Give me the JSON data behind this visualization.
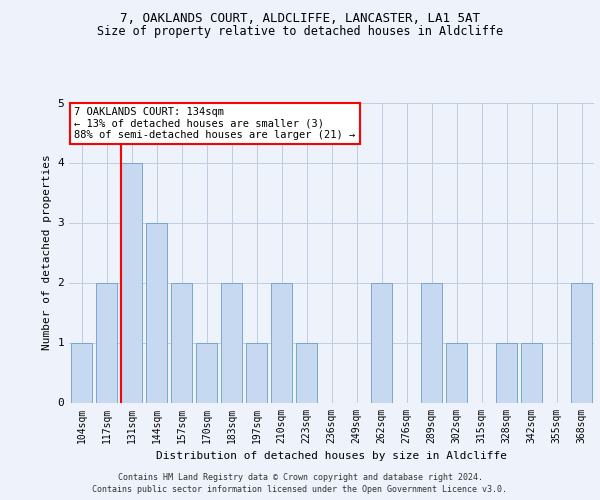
{
  "title1": "7, OAKLANDS COURT, ALDCLIFFE, LANCASTER, LA1 5AT",
  "title2": "Size of property relative to detached houses in Aldcliffe",
  "xlabel": "Distribution of detached houses by size in Aldcliffe",
  "ylabel": "Number of detached properties",
  "categories": [
    "104sqm",
    "117sqm",
    "131sqm",
    "144sqm",
    "157sqm",
    "170sqm",
    "183sqm",
    "197sqm",
    "210sqm",
    "223sqm",
    "236sqm",
    "249sqm",
    "262sqm",
    "276sqm",
    "289sqm",
    "302sqm",
    "315sqm",
    "328sqm",
    "342sqm",
    "355sqm",
    "368sqm"
  ],
  "values": [
    1,
    2,
    4,
    3,
    2,
    1,
    2,
    1,
    2,
    1,
    0,
    0,
    2,
    0,
    2,
    1,
    0,
    1,
    1,
    0,
    2
  ],
  "bar_color": "#c6d9f0",
  "bar_edge_color": "#6a9ec7",
  "highlight_bar_index": 2,
  "annotation_text": "7 OAKLANDS COURT: 134sqm\n← 13% of detached houses are smaller (3)\n88% of semi-detached houses are larger (21) →",
  "annotation_box_color": "white",
  "annotation_box_edge_color": "red",
  "vline_color": "red",
  "ylim": [
    0,
    5
  ],
  "yticks": [
    0,
    1,
    2,
    3,
    4,
    5
  ],
  "footer1": "Contains HM Land Registry data © Crown copyright and database right 2024.",
  "footer2": "Contains public sector information licensed under the Open Government Licence v3.0.",
  "background_color": "#eef2fa",
  "grid_color": "#c0cce0",
  "title_fontsize": 9,
  "subtitle_fontsize": 8.5,
  "ylabel_fontsize": 8,
  "xlabel_fontsize": 8,
  "tick_fontsize": 7,
  "footer_fontsize": 6,
  "annotation_fontsize": 7.5
}
